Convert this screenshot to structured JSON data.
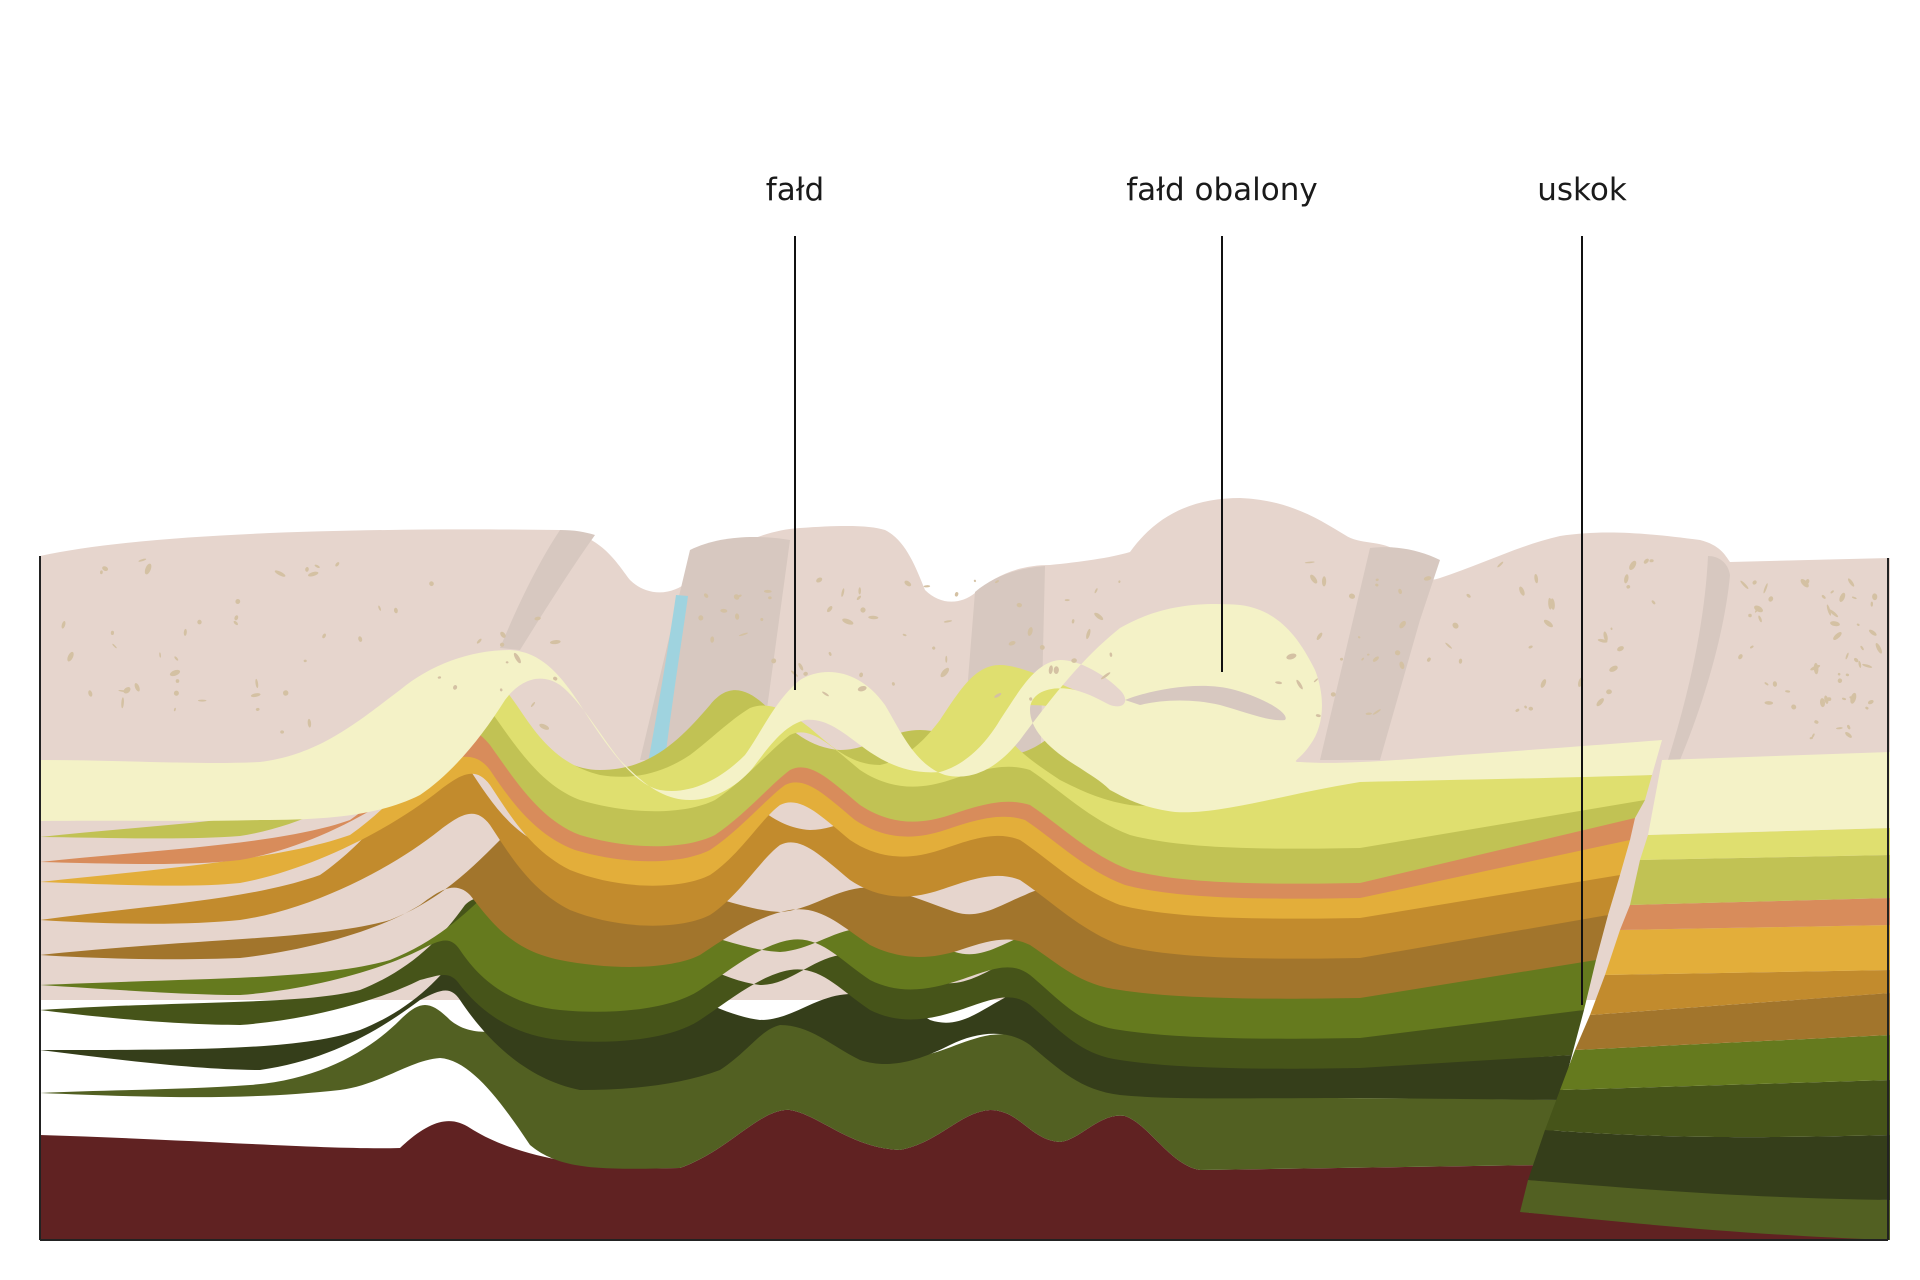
{
  "labels": {
    "fold": "fałd",
    "overturned_fold": "fałd obalony",
    "fault": "uskok"
  },
  "colors": {
    "surface_rock": "#e6d5cd",
    "surface_shadow": "#d7c8c0",
    "speckle": "#d4c1a3",
    "water": "#9fd3df",
    "cream": "#f4f2c7",
    "yellow_green": "#dfdf6f",
    "olive_light": "#c1c254",
    "salmon": "#d88c5b",
    "gold": "#e3ae3a",
    "ochre": "#c28b2d",
    "brown_ochre": "#a2752c",
    "green": "#657a1e",
    "dark_olive": "#465419",
    "darkest_olive": "#353e1a",
    "moss": "#526022",
    "maroon": "#602222"
  }
}
